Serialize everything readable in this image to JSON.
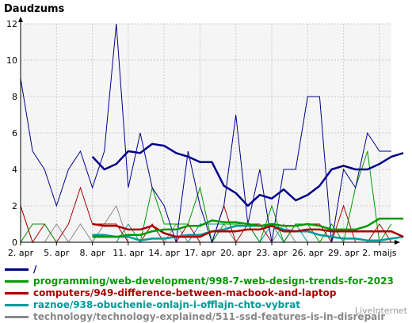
{
  "colors": {
    "series_0": "#00008b",
    "series_1": "#009900",
    "series_2": "#aa0000",
    "series_3": "#00999a",
    "series_4": "#888888",
    "avg_0": "#00008b",
    "avg_1": "#009900",
    "avg_2": "#aa0000",
    "avg_3": "#00999a",
    "grid": "#cccccc",
    "plot_bg": "#f5f5f5"
  },
  "watermark": "LiveInternet",
  "chart_data": {
    "type": "line",
    "title": "Daudzums",
    "x": [
      "2. apr",
      "3. apr",
      "4. apr",
      "5. apr",
      "6. apr",
      "7. apr",
      "8. apr",
      "9. apr",
      "10. apr",
      "11. apr",
      "12. apr",
      "13. apr",
      "14. apr",
      "15. apr",
      "16. apr",
      "17. apr",
      "18. apr",
      "19. apr",
      "20. apr",
      "21. apr",
      "22. apr",
      "23. apr",
      "24. apr",
      "25. apr",
      "26. apr",
      "27. apr",
      "28. apr",
      "29. apr",
      "30. apr",
      "1. maijs",
      "2. maijs",
      "3. maijs"
    ],
    "xticks": [
      "2. apr",
      "5. apr",
      "8. apr",
      "11. apr",
      "14. apr",
      "17. apr",
      "20. apr",
      "23. apr",
      "26. apr",
      "29. apr",
      "2. maijs"
    ],
    "ylim": [
      0,
      12
    ],
    "yticks": [
      0,
      2,
      4,
      6,
      8,
      10,
      12
    ],
    "grid": true,
    "legend_position": "bottom",
    "series": [
      {
        "name": "/",
        "values": [
          9,
          5,
          4,
          2,
          4,
          5,
          3,
          5,
          12,
          3,
          6,
          3,
          2,
          0,
          5,
          2,
          0,
          2,
          7,
          1,
          4,
          0,
          4,
          4,
          8,
          8,
          0,
          4,
          3,
          6,
          5,
          5
        ]
      },
      {
        "name": "programming/web-development/998-7-web-design-trends-for-2023",
        "values": [
          0,
          1,
          1,
          0,
          0,
          0,
          0,
          0,
          0,
          0,
          0,
          3,
          1,
          1,
          1,
          3,
          0,
          1,
          1,
          1,
          0,
          2,
          0,
          1,
          1,
          0,
          1,
          0,
          3,
          5,
          0,
          1
        ]
      },
      {
        "name": "computers/949-difference-between-macbook-and-laptop",
        "values": [
          2,
          0,
          1,
          0,
          1,
          3,
          1,
          1,
          1,
          0,
          0,
          1,
          0,
          0,
          1,
          0,
          0,
          2,
          0,
          1,
          1,
          0,
          0,
          1,
          1,
          1,
          0,
          2,
          0,
          0,
          1,
          0
        ]
      },
      {
        "name": "raznoe/938-obuchenie-onlajn-i-offlajn-chto-vybrat",
        "values": [
          0,
          0,
          0,
          0,
          0,
          0,
          0,
          0,
          0,
          1,
          0,
          0,
          0,
          0,
          0,
          1,
          1,
          1,
          1,
          1,
          0,
          1,
          0,
          1,
          0,
          0,
          0,
          0,
          0,
          0,
          0,
          0
        ]
      },
      {
        "name": "technology/technology-explained/511-ssd-features-is-in-disrepair",
        "values": [
          2,
          0,
          0,
          1,
          0,
          1,
          0,
          1,
          2,
          0,
          0,
          0,
          0,
          1,
          0,
          0,
          0,
          1,
          0,
          0,
          0,
          0,
          1,
          0,
          0,
          0,
          0,
          0,
          0,
          0,
          0,
          0
        ]
      }
    ],
    "moving_averages": [
      {
        "start": 6,
        "values": [
          4.7,
          4.0,
          4.3,
          5.0,
          4.9,
          5.4,
          5.3,
          4.9,
          4.7,
          4.4,
          4.4,
          3.1,
          2.7,
          2.0,
          2.6,
          2.4,
          2.9,
          2.3,
          2.6,
          3.1,
          4.0,
          4.2,
          4.0,
          4.0,
          4.3,
          4.7,
          4.9
        ]
      },
      {
        "start": 6,
        "values": [
          0.3,
          0.3,
          0.3,
          0.4,
          0.4,
          0.6,
          0.7,
          0.7,
          0.9,
          0.9,
          1.2,
          1.1,
          1.1,
          1.0,
          0.9,
          1.0,
          0.9,
          0.9,
          1.0,
          0.9,
          0.7,
          0.7,
          0.7,
          0.9,
          1.3,
          1.3,
          1.3
        ]
      },
      {
        "start": 6,
        "values": [
          1.0,
          0.9,
          0.9,
          0.7,
          0.7,
          0.9,
          0.5,
          0.3,
          0.3,
          0.3,
          0.6,
          0.6,
          0.6,
          0.7,
          0.7,
          0.9,
          0.6,
          0.6,
          0.7,
          0.7,
          0.6,
          0.6,
          0.6,
          0.6,
          0.6,
          0.6,
          0.3
        ]
      },
      {
        "start": 6,
        "values": [
          0.4,
          0.4,
          0.3,
          0.3,
          0.1,
          0.2,
          0.2,
          0.3,
          0.4,
          0.4,
          0.6,
          0.7,
          0.9,
          0.9,
          0.9,
          0.9,
          0.7,
          0.6,
          0.6,
          0.4,
          0.3,
          0.2,
          0.2,
          0.1,
          0.1,
          0.2,
          0.3
        ]
      }
    ]
  }
}
